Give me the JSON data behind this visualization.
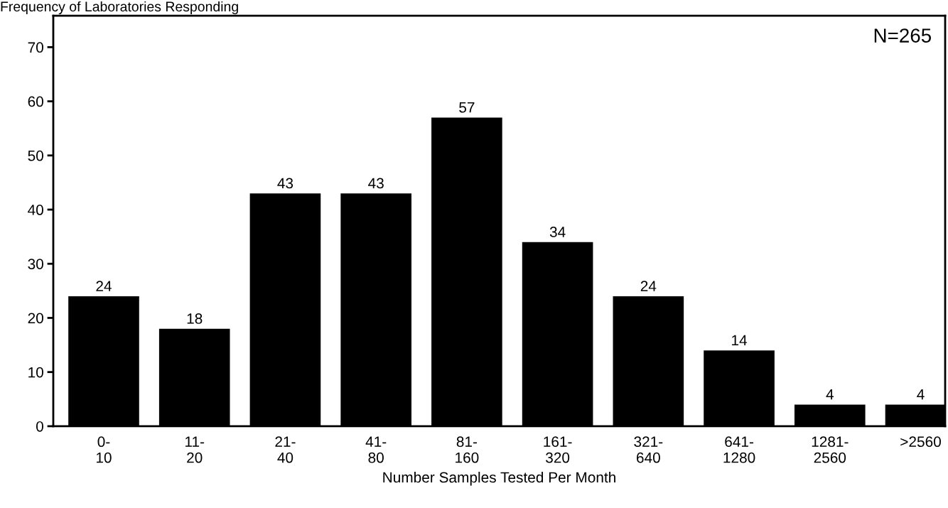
{
  "chart_data": {
    "type": "bar",
    "ylabel": "Frequency of Laboratories Responding",
    "xlabel": "Number Samples Tested Per Month",
    "categories": [
      "0-\n10",
      "11-\n20",
      "21-\n40",
      "41-\n80",
      "81-\n160",
      "161-\n320",
      "321-\n640",
      "641-\n1280",
      "1281-\n2560",
      ">2560"
    ],
    "values": [
      24,
      18,
      43,
      43,
      57,
      34,
      24,
      14,
      4,
      4
    ],
    "color": "#000000",
    "ylim": [
      0,
      75.8
    ],
    "yticks": [
      0,
      10,
      20,
      30,
      40,
      50,
      60,
      70
    ],
    "grid": false,
    "data_labels": true,
    "annotations": [
      "N=265"
    ]
  }
}
